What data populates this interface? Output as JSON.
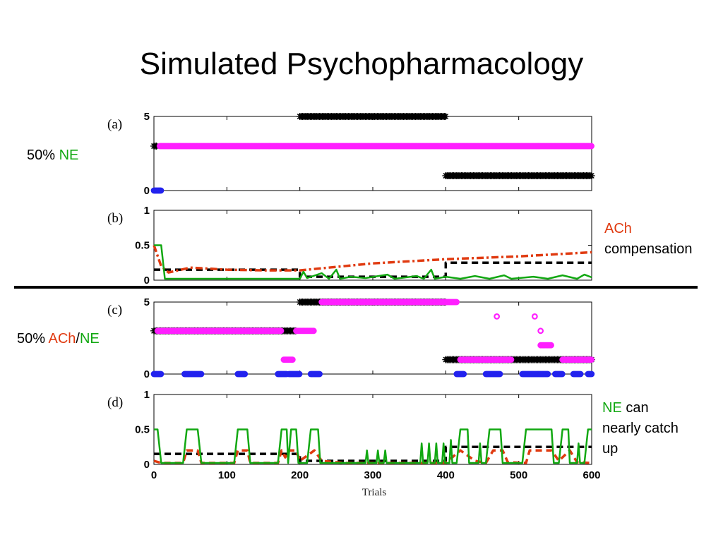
{
  "title": "Simulated Psychopharmacology",
  "xlabel": "Trials",
  "annotations": {
    "a_left": {
      "pre": "50% ",
      "ne": "NE"
    },
    "c_left": {
      "pre": "50% ",
      "ach": "ACh",
      "sep": "/",
      "ne": "NE"
    },
    "b_right": {
      "ach": "ACh",
      "rest": "compensation"
    },
    "d_right": {
      "ne": "NE",
      "can": " can",
      "line2": "nearly catch",
      "line3": "up"
    }
  },
  "colors": {
    "green": "#12a812",
    "red": "#e03a10",
    "magenta": "#ff1fff",
    "blue": "#2222ee",
    "black": "#000000"
  },
  "chart_data": [
    {
      "type": "scatter",
      "panel": "(a)",
      "xlim": [
        0,
        600
      ],
      "ylim": [
        0,
        5
      ],
      "yticks": [
        0,
        5
      ],
      "xticks": [
        0,
        100,
        200,
        300,
        400,
        500,
        600
      ],
      "xticklabels": [],
      "series": [
        {
          "marker": "asterisk",
          "color": "#000000",
          "segments": [
            {
              "x0": 0,
              "x1": 5,
              "y": 3
            },
            {
              "x0": 200,
              "x1": 400,
              "y": 5
            },
            {
              "x0": 400,
              "x1": 600,
              "y": 1
            }
          ]
        },
        {
          "marker": "circle",
          "color": "#ff1fff",
          "segments": [
            {
              "x0": 8,
              "x1": 600,
              "y": 3
            }
          ]
        },
        {
          "marker": "circle",
          "color": "#2222ee",
          "segments": [
            {
              "x0": 0,
              "x1": 10,
              "y": 0
            }
          ]
        }
      ]
    },
    {
      "type": "line",
      "panel": "(b)",
      "xlim": [
        0,
        600
      ],
      "ylim": [
        0,
        1
      ],
      "yticks": [
        0,
        0.5,
        1
      ],
      "xticks": [
        0,
        100,
        200,
        300,
        400,
        500,
        600
      ],
      "xticklabels": [],
      "series": [
        {
          "style": "dashed",
          "color": "#000000",
          "points": [
            [
              0,
              0.15
            ],
            [
              200,
              0.15
            ],
            [
              200,
              0.05
            ],
            [
              400,
              0.05
            ],
            [
              400,
              0.25
            ],
            [
              600,
              0.25
            ]
          ]
        },
        {
          "style": "dashdot",
          "color": "#e03a10",
          "points": [
            [
              0,
              0.5
            ],
            [
              10,
              0.2
            ],
            [
              20,
              0.11
            ],
            [
              50,
              0.18
            ],
            [
              100,
              0.15
            ],
            [
              150,
              0.14
            ],
            [
              200,
              0.14
            ],
            [
              300,
              0.24
            ],
            [
              400,
              0.3
            ],
            [
              500,
              0.34
            ],
            [
              600,
              0.4
            ]
          ]
        },
        {
          "style": "solid",
          "color": "#12a812",
          "points": [
            [
              0,
              0.5
            ],
            [
              10,
              0.5
            ],
            [
              15,
              0.02
            ],
            [
              200,
              0.02
            ],
            [
              205,
              0.12
            ],
            [
              210,
              0.03
            ],
            [
              230,
              0.1
            ],
            [
              240,
              0.02
            ],
            [
              250,
              0.15
            ],
            [
              255,
              0.02
            ],
            [
              270,
              0.05
            ],
            [
              290,
              0.03
            ],
            [
              320,
              0.08
            ],
            [
              330,
              0.02
            ],
            [
              360,
              0.06
            ],
            [
              370,
              0.02
            ],
            [
              380,
              0.15
            ],
            [
              385,
              0.02
            ],
            [
              400,
              0.05
            ],
            [
              420,
              0.02
            ],
            [
              440,
              0.06
            ],
            [
              460,
              0.02
            ],
            [
              480,
              0.07
            ],
            [
              490,
              0.02
            ],
            [
              520,
              0.05
            ],
            [
              540,
              0.02
            ],
            [
              560,
              0.07
            ],
            [
              580,
              0.02
            ],
            [
              590,
              0.08
            ],
            [
              600,
              0.04
            ]
          ]
        }
      ]
    },
    {
      "type": "scatter",
      "panel": "(c)",
      "xlim": [
        0,
        600
      ],
      "ylim": [
        0,
        5
      ],
      "yticks": [
        0,
        5
      ],
      "xticks": [
        0,
        100,
        200,
        300,
        400,
        500,
        600
      ],
      "xticklabels": [],
      "series": [
        {
          "marker": "asterisk",
          "color": "#000000",
          "segments": [
            {
              "x0": 0,
              "x1": 195,
              "y": 3
            },
            {
              "x0": 200,
              "x1": 400,
              "y": 5
            },
            {
              "x0": 400,
              "x1": 600,
              "y": 1
            }
          ]
        },
        {
          "marker": "circle",
          "color": "#ff1fff",
          "segments": [
            {
              "x0": 5,
              "x1": 175,
              "y": 3
            },
            {
              "x0": 195,
              "x1": 220,
              "y": 3
            },
            {
              "x0": 178,
              "x1": 190,
              "y": 1
            },
            {
              "x0": 230,
              "x1": 415,
              "y": 5
            },
            {
              "x0": 420,
              "x1": 490,
              "y": 1
            },
            {
              "x0": 530,
              "x1": 545,
              "y": 2
            },
            {
              "x0": 560,
              "x1": 600,
              "y": 1
            }
          ]
        },
        {
          "marker": "circle",
          "color": "#ff1fff",
          "points": [
            [
              55,
              3
            ],
            [
              470,
              4
            ],
            [
              522,
              4
            ],
            [
              530,
              3
            ]
          ]
        },
        {
          "marker": "circle",
          "color": "#2222ee",
          "segments": [
            {
              "x0": 0,
              "x1": 10,
              "y": 0
            },
            {
              "x0": 42,
              "x1": 65,
              "y": 0
            },
            {
              "x0": 115,
              "x1": 125,
              "y": 0
            },
            {
              "x0": 170,
              "x1": 182,
              "y": 0
            },
            {
              "x0": 185,
              "x1": 200,
              "y": 0
            },
            {
              "x0": 215,
              "x1": 228,
              "y": 0
            },
            {
              "x0": 415,
              "x1": 425,
              "y": 0
            },
            {
              "x0": 455,
              "x1": 475,
              "y": 0
            },
            {
              "x0": 505,
              "x1": 540,
              "y": 0
            },
            {
              "x0": 550,
              "x1": 560,
              "y": 0
            },
            {
              "x0": 575,
              "x1": 585,
              "y": 0
            },
            {
              "x0": 595,
              "x1": 600,
              "y": 0
            }
          ]
        }
      ]
    },
    {
      "type": "line",
      "panel": "(d)",
      "xlim": [
        0,
        600
      ],
      "ylim": [
        0,
        1
      ],
      "yticks": [
        0,
        0.5,
        1
      ],
      "xticks": [
        0,
        100,
        200,
        300,
        400,
        500,
        600
      ],
      "xticklabels": [
        "0",
        "100",
        "200",
        "300",
        "400",
        "500",
        "600"
      ],
      "series": [
        {
          "style": "dashed",
          "color": "#000000",
          "points": [
            [
              0,
              0.15
            ],
            [
              200,
              0.15
            ],
            [
              200,
              0.05
            ],
            [
              400,
              0.05
            ],
            [
              400,
              0.25
            ],
            [
              600,
              0.25
            ]
          ]
        },
        {
          "style": "dashed",
          "color": "#e03a10",
          "points": [
            [
              0,
              0.05
            ],
            [
              10,
              0.02
            ],
            [
              40,
              0.02
            ],
            [
              45,
              0.2
            ],
            [
              60,
              0.2
            ],
            [
              65,
              0.02
            ],
            [
              110,
              0.02
            ],
            [
              115,
              0.2
            ],
            [
              128,
              0.2
            ],
            [
              132,
              0.02
            ],
            [
              170,
              0.02
            ],
            [
              175,
              0.2
            ],
            [
              180,
              0.1
            ],
            [
              185,
              0.2
            ],
            [
              195,
              0.2
            ],
            [
              200,
              0.05
            ],
            [
              220,
              0.2
            ],
            [
              230,
              0.05
            ],
            [
              260,
              0.02
            ],
            [
              400,
              0.02
            ],
            [
              420,
              0.2
            ],
            [
              440,
              0.05
            ],
            [
              455,
              0.02
            ],
            [
              465,
              0.2
            ],
            [
              478,
              0.2
            ],
            [
              485,
              0.03
            ],
            [
              510,
              0.02
            ],
            [
              515,
              0.2
            ],
            [
              545,
              0.2
            ],
            [
              555,
              0.05
            ],
            [
              570,
              0.2
            ],
            [
              580,
              0.03
            ],
            [
              600,
              0.02
            ]
          ]
        },
        {
          "style": "solid",
          "color": "#12a812",
          "points": [
            [
              0,
              0.5
            ],
            [
              5,
              0.5
            ],
            [
              10,
              0.02
            ],
            [
              40,
              0.02
            ],
            [
              45,
              0.5
            ],
            [
              60,
              0.5
            ],
            [
              65,
              0.02
            ],
            [
              110,
              0.02
            ],
            [
              115,
              0.5
            ],
            [
              128,
              0.5
            ],
            [
              132,
              0.02
            ],
            [
              170,
              0.02
            ],
            [
              175,
              0.5
            ],
            [
              182,
              0.5
            ],
            [
              184,
              0.02
            ],
            [
              188,
              0.5
            ],
            [
              195,
              0.5
            ],
            [
              198,
              0.02
            ],
            [
              210,
              0.02
            ],
            [
              215,
              0.5
            ],
            [
              225,
              0.5
            ],
            [
              228,
              0.02
            ],
            [
              290,
              0.02
            ],
            [
              292,
              0.2
            ],
            [
              294,
              0.02
            ],
            [
              305,
              0.02
            ],
            [
              307,
              0.2
            ],
            [
              309,
              0.02
            ],
            [
              315,
              0.02
            ],
            [
              317,
              0.2
            ],
            [
              319,
              0.02
            ],
            [
              365,
              0.02
            ],
            [
              367,
              0.3
            ],
            [
              369,
              0.02
            ],
            [
              375,
              0.02
            ],
            [
              377,
              0.3
            ],
            [
              379,
              0.02
            ],
            [
              385,
              0.02
            ],
            [
              387,
              0.3
            ],
            [
              389,
              0.02
            ],
            [
              395,
              0.02
            ],
            [
              397,
              0.3
            ],
            [
              399,
              0.02
            ],
            [
              405,
              0.02
            ],
            [
              407,
              0.35
            ],
            [
              409,
              0.02
            ],
            [
              415,
              0.02
            ],
            [
              420,
              0.5
            ],
            [
              430,
              0.5
            ],
            [
              432,
              0.02
            ],
            [
              445,
              0.02
            ],
            [
              447,
              0.3
            ],
            [
              449,
              0.02
            ],
            [
              455,
              0.02
            ],
            [
              460,
              0.5
            ],
            [
              475,
              0.5
            ],
            [
              478,
              0.02
            ],
            [
              505,
              0.02
            ],
            [
              510,
              0.5
            ],
            [
              545,
              0.5
            ],
            [
              548,
              0.02
            ],
            [
              555,
              0.02
            ],
            [
              560,
              0.5
            ],
            [
              568,
              0.5
            ],
            [
              570,
              0.02
            ],
            [
              580,
              0.02
            ],
            [
              582,
              0.3
            ],
            [
              584,
              0.02
            ],
            [
              590,
              0.02
            ],
            [
              595,
              0.5
            ],
            [
              600,
              0.5
            ]
          ]
        }
      ]
    }
  ]
}
